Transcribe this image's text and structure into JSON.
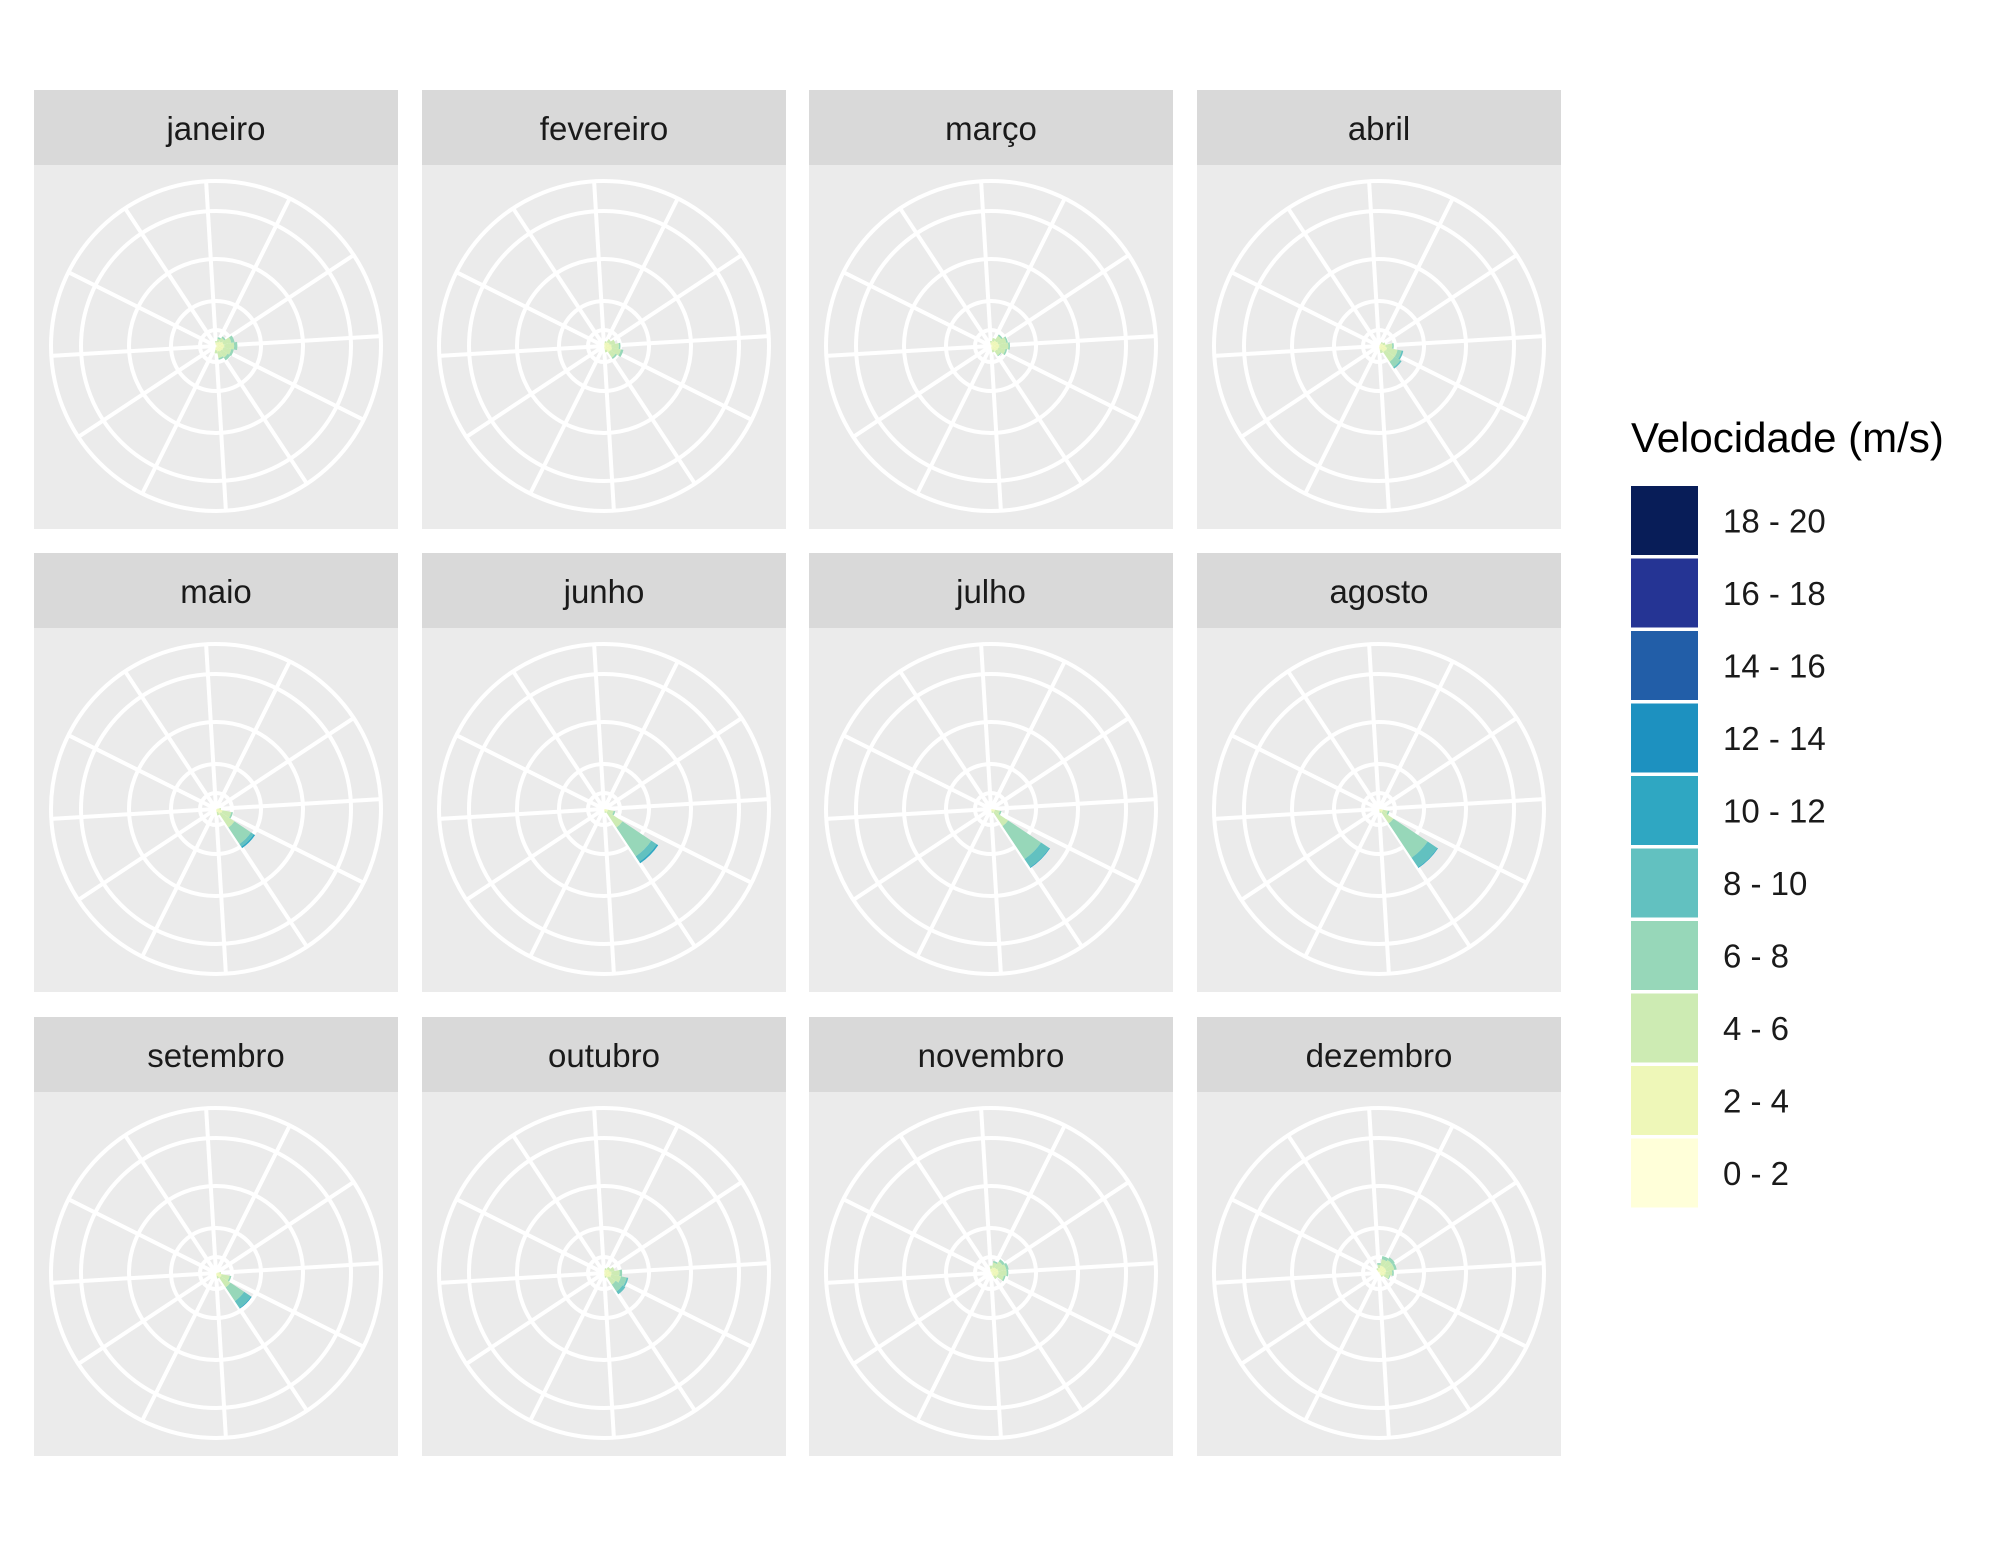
{
  "chart_data": {
    "type": "wind-rose",
    "legend": {
      "title": "Velocidade (m/s)",
      "position": "right",
      "bins": [
        {
          "label": "18 - 20",
          "color": "#081D58"
        },
        {
          "label": "16 - 18",
          "color": "#253494"
        },
        {
          "label": "14 - 16",
          "color": "#225EA8"
        },
        {
          "label": "12 - 14",
          "color": "#1D91C0"
        },
        {
          "label": "10 - 12",
          "color": "#2FA7C2"
        },
        {
          "label": "8 - 10",
          "color": "#62C1C0"
        },
        {
          "label": "6 - 8",
          "color": "#97D7B9"
        },
        {
          "label": "4 - 6",
          "color": "#CDEBB3"
        },
        {
          "label": "2 - 4",
          "color": "#EEF7B8"
        },
        {
          "label": "0 - 2",
          "color": "#FFFFD9"
        }
      ]
    },
    "sectors": 16,
    "radial_max": 1.0,
    "panels": [
      {
        "title": "janeiro",
        "sectors": {
          "3": [
            0.005,
            0.04,
            0.05,
            0.02
          ],
          "4": [
            0.005,
            0.045,
            0.06,
            0.02
          ],
          "5": [
            0.005,
            0.04,
            0.05,
            0.015
          ],
          "6": [
            0.005,
            0.035,
            0.045,
            0.02
          ],
          "7": [
            0.005,
            0.03,
            0.04,
            0.01
          ],
          "8": [
            0.005,
            0.02,
            0.02
          ],
          "2": [
            0.005,
            0.03,
            0.025,
            0.01
          ],
          "1": [
            0.005,
            0.02,
            0.02,
            0.01
          ],
          "0": [
            0.005,
            0.015,
            0.01
          ]
        }
      },
      {
        "title": "fevereiro",
        "sectors": {
          "3": [
            0.005,
            0.03,
            0.035
          ],
          "4": [
            0.005,
            0.04,
            0.045,
            0.01
          ],
          "5": [
            0.005,
            0.045,
            0.055,
            0.015
          ],
          "6": [
            0.005,
            0.04,
            0.04,
            0.01
          ],
          "7": [
            0.005,
            0.02,
            0.015
          ],
          "2": [
            0.005,
            0.025,
            0.02
          ],
          "1": [
            0.005,
            0.015,
            0.01
          ]
        }
      },
      {
        "title": "março",
        "sectors": {
          "2": [
            0.005,
            0.035,
            0.035,
            0.01
          ],
          "3": [
            0.005,
            0.04,
            0.05,
            0.01
          ],
          "4": [
            0.005,
            0.045,
            0.055,
            0.01
          ],
          "5": [
            0.005,
            0.04,
            0.045,
            0.01
          ],
          "6": [
            0.005,
            0.035,
            0.03,
            0.005
          ],
          "7": [
            0.005,
            0.02,
            0.015
          ],
          "1": [
            0.005,
            0.025,
            0.02
          ],
          "0": [
            0.005,
            0.015,
            0.01
          ]
        }
      },
      {
        "title": "abril",
        "sectors": {
          "4": [
            0.005,
            0.035,
            0.04,
            0.01
          ],
          "5": [
            0.005,
            0.045,
            0.065,
            0.025,
            0.01
          ],
          "6": [
            0.005,
            0.04,
            0.07,
            0.04,
            0.01
          ],
          "7": [
            0.005,
            0.02,
            0.02
          ],
          "3": [
            0.005,
            0.02,
            0.015
          ],
          "2": [
            0.005,
            0.015,
            0.01
          ]
        }
      },
      {
        "title": "maio",
        "sectors": {
          "5": [
            0.005,
            0.035,
            0.055,
            0.01
          ],
          "6": [
            0.005,
            0.03,
            0.1,
            0.12,
            0.02,
            0.01
          ],
          "7": [
            0.005,
            0.015,
            0.02
          ],
          "4": [
            0.005,
            0.015,
            0.01
          ]
        }
      },
      {
        "title": "junho",
        "sectors": {
          "5": [
            0.005,
            0.02,
            0.035,
            0.01
          ],
          "6": [
            0.005,
            0.02,
            0.11,
            0.21,
            0.04,
            0.01
          ],
          "7": [
            0.005,
            0.01,
            0.01
          ]
        }
      },
      {
        "title": "julho",
        "sectors": {
          "5": [
            0.005,
            0.02,
            0.03,
            0.01
          ],
          "6": [
            0.005,
            0.02,
            0.1,
            0.24,
            0.06,
            0.005
          ],
          "7": [
            0.005,
            0.01,
            0.01
          ]
        }
      },
      {
        "title": "agosto",
        "sectors": {
          "5": [
            0.005,
            0.02,
            0.03,
            0.01
          ],
          "6": [
            0.005,
            0.02,
            0.08,
            0.25,
            0.07,
            0.005
          ],
          "7": [
            0.005,
            0.01,
            0.01
          ]
        }
      },
      {
        "title": "setembro",
        "sectors": {
          "5": [
            0.005,
            0.03,
            0.05,
            0.01
          ],
          "6": [
            0.005,
            0.03,
            0.07,
            0.1,
            0.05,
            0.005
          ],
          "7": [
            0.005,
            0.015,
            0.015
          ],
          "4": [
            0.005,
            0.015,
            0.01
          ]
        }
      },
      {
        "title": "outubro",
        "sectors": {
          "3": [
            0.005,
            0.03,
            0.03
          ],
          "4": [
            0.005,
            0.04,
            0.05,
            0.015
          ],
          "5": [
            0.005,
            0.04,
            0.06,
            0.035,
            0.01
          ],
          "6": [
            0.005,
            0.03,
            0.05,
            0.05,
            0.02
          ],
          "7": [
            0.005,
            0.015,
            0.01
          ],
          "2": [
            0.005,
            0.025,
            0.015
          ],
          "1": [
            0.005,
            0.015,
            0.01
          ]
        }
      },
      {
        "title": "novembro",
        "sectors": {
          "1": [
            0.005,
            0.03,
            0.03,
            0.01
          ],
          "2": [
            0.005,
            0.035,
            0.045,
            0.015
          ],
          "3": [
            0.005,
            0.04,
            0.05,
            0.015
          ],
          "4": [
            0.005,
            0.04,
            0.05,
            0.01
          ],
          "5": [
            0.005,
            0.035,
            0.04,
            0.01
          ],
          "6": [
            0.005,
            0.02,
            0.02
          ],
          "0": [
            0.005,
            0.02,
            0.02
          ]
        }
      },
      {
        "title": "dezembro",
        "sectors": {
          "1": [
            0.005,
            0.04,
            0.04,
            0.02
          ],
          "2": [
            0.005,
            0.04,
            0.05,
            0.02
          ],
          "3": [
            0.005,
            0.04,
            0.05,
            0.015
          ],
          "4": [
            0.005,
            0.035,
            0.04,
            0.01
          ],
          "5": [
            0.005,
            0.03,
            0.03,
            0.005
          ],
          "0": [
            0.005,
            0.025,
            0.02,
            0.01
          ],
          "15": [
            0.005,
            0.015,
            0.01
          ],
          "6": [
            0.005,
            0.015,
            0.01
          ]
        }
      }
    ]
  }
}
